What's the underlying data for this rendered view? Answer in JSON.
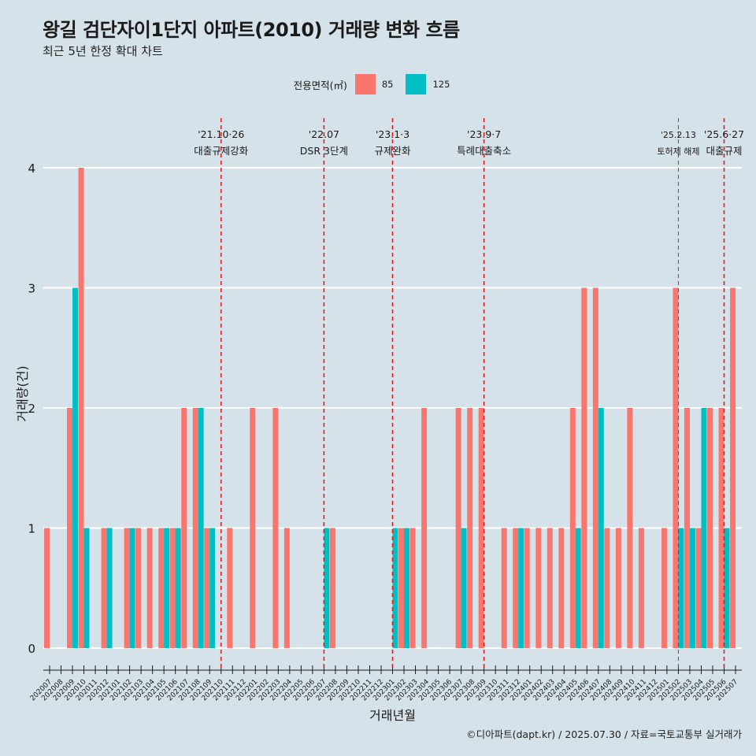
{
  "title": "왕길 검단자이1단지 아파트(2010) 거래량 변화 흐름",
  "subtitle": "최근 5년 한정 확대 차트",
  "caption": "©디아파트(dapt.kr) / 2025.07.30 / 자료=국토교통부 실거래가",
  "legend": {
    "title": "전용면적(㎡)",
    "items": [
      {
        "label": "85",
        "color": "#f8766d"
      },
      {
        "label": "125",
        "color": "#00bfc4"
      }
    ]
  },
  "chart_data": {
    "type": "bar",
    "xlabel": "거래년월",
    "ylabel": "거래량(건)",
    "ylim": [
      0,
      4
    ],
    "yticks": [
      0,
      1,
      2,
      3,
      4
    ],
    "categories": [
      "202007",
      "202008",
      "202009",
      "202010",
      "202011",
      "202012",
      "202101",
      "202102",
      "202103",
      "202104",
      "202105",
      "202106",
      "202107",
      "202108",
      "202109",
      "202110",
      "202111",
      "202112",
      "202201",
      "202202",
      "202203",
      "202204",
      "202205",
      "202206",
      "202207",
      "202208",
      "202209",
      "202210",
      "202211",
      "202212",
      "202301",
      "202302",
      "202303",
      "202304",
      "202305",
      "202306",
      "202307",
      "202308",
      "202309",
      "202310",
      "202311",
      "202312",
      "202401",
      "202402",
      "202403",
      "202404",
      "202405",
      "202406",
      "202407",
      "202408",
      "202409",
      "202410",
      "202411",
      "202412",
      "202501",
      "202502",
      "202503",
      "202504",
      "202505",
      "202506",
      "202507"
    ],
    "series": [
      {
        "name": "85",
        "color": "#f8766d",
        "values": [
          1,
          0,
          2,
          4,
          0,
          1,
          0,
          1,
          1,
          1,
          1,
          1,
          2,
          2,
          1,
          0,
          1,
          0,
          2,
          0,
          2,
          1,
          0,
          0,
          0,
          1,
          0,
          0,
          0,
          0,
          0,
          1,
          1,
          2,
          0,
          0,
          2,
          2,
          2,
          0,
          1,
          1,
          1,
          1,
          1,
          1,
          2,
          3,
          3,
          1,
          1,
          2,
          1,
          0,
          1,
          3,
          2,
          1,
          2,
          2,
          3
        ]
      },
      {
        "name": "125",
        "color": "#00bfc4",
        "values": [
          0,
          0,
          3,
          1,
          0,
          1,
          0,
          1,
          0,
          0,
          1,
          1,
          0,
          2,
          1,
          0,
          0,
          0,
          0,
          0,
          0,
          0,
          0,
          0,
          1,
          0,
          0,
          0,
          0,
          0,
          1,
          1,
          0,
          0,
          0,
          0,
          1,
          0,
          0,
          0,
          0,
          1,
          0,
          0,
          0,
          0,
          1,
          0,
          2,
          0,
          0,
          0,
          0,
          0,
          0,
          1,
          1,
          2,
          0,
          1,
          0
        ]
      }
    ],
    "annotations": [
      {
        "date": "'21.10·26",
        "text": "대출규제강화",
        "at": "202110"
      },
      {
        "date": "'22.07",
        "text": "DSR 3단계",
        "at": "202207"
      },
      {
        "date": "'23.1·3",
        "text": "규제완화",
        "at": "202301"
      },
      {
        "date": "'23.9·7",
        "text": "특례대출축소",
        "at": "202309"
      },
      {
        "date": "'25.2.13",
        "text": "토허제 해제",
        "at": "202502"
      },
      {
        "date": "'25.6·27",
        "text": "대출규제",
        "at": "202506"
      }
    ],
    "grid": true
  }
}
